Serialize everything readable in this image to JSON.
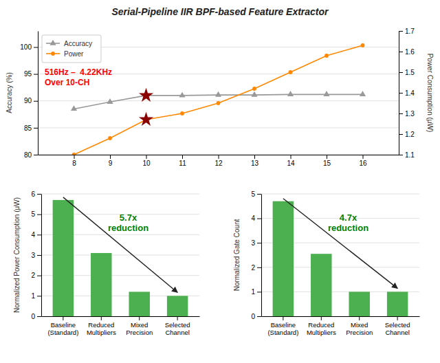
{
  "title": "Serial-Pipeline IIR BPF-based Feature Extractor",
  "chart_data": [
    {
      "type": "line",
      "x": [
        8,
        9,
        10,
        11,
        12,
        13,
        14,
        15,
        16
      ],
      "xlim": [
        7,
        17
      ],
      "xticks": [
        8,
        9,
        10,
        11,
        12,
        13,
        14,
        15,
        16
      ],
      "ylim": [
        80,
        103
      ],
      "yticks": [
        80,
        85,
        90,
        95,
        100
      ],
      "y2lim": [
        1.1,
        1.7
      ],
      "y2ticks": [
        1.1,
        1.2,
        1.3,
        1.4,
        1.5,
        1.6,
        1.7
      ],
      "ylabel": "Accuracy (%)",
      "y2label": "Power Consumption (μW)",
      "grid": true,
      "legend": "upper left",
      "annotation": "516Hz –  4.22KHz\nOver 10-CH",
      "series": [
        {
          "name": "Accuracy",
          "color": "#999999",
          "marker": "triangle",
          "values": [
            88.5,
            89.8,
            91.0,
            91.0,
            91.1,
            91.1,
            91.2,
            91.2,
            91.2
          ]
        },
        {
          "name": "Power",
          "color": "#ff8800",
          "marker": "circle",
          "axis": "y2",
          "values": [
            1.1,
            1.18,
            1.27,
            1.3,
            1.35,
            1.42,
            1.5,
            1.58,
            1.63
          ]
        },
        {
          "type": "scatter",
          "color": "darkred",
          "marker": "star",
          "x": [
            10
          ],
          "values": [
            91.0
          ]
        },
        {
          "type": "scatter",
          "color": "darkred",
          "marker": "star",
          "axis": "y2",
          "x": [
            10
          ],
          "values": [
            1.27
          ]
        }
      ]
    },
    {
      "type": "bar",
      "categories": [
        "Baseline\n(Standard)",
        "Reduced\nMultipliers",
        "Mixed\nPrecision",
        "Selected\nChannel"
      ],
      "values": [
        5.7,
        3.1,
        1.2,
        1.0
      ],
      "color": "#4caf50",
      "ylabel": "Normalized Power Consumption (μW)",
      "ylim": [
        0,
        6
      ],
      "yticks": [
        0,
        1,
        2,
        3,
        4,
        5,
        6
      ],
      "grid": true,
      "annotation": "5.7x\nreduction"
    },
    {
      "type": "bar",
      "categories": [
        "Baseline\n(Standard)",
        "Reduced\nMultipliers",
        "Mixed\nPrecision",
        "Selected\nChannel"
      ],
      "values": [
        4.7,
        2.55,
        1.0,
        1.0
      ],
      "color": "#4caf50",
      "ylabel": "Normalized Gate Count",
      "ylim": [
        0,
        5
      ],
      "yticks": [
        0,
        1,
        2,
        3,
        4,
        5
      ],
      "grid": true,
      "annotation": "4.7x\nreduction"
    }
  ]
}
